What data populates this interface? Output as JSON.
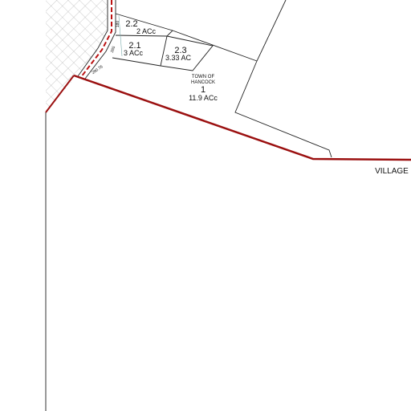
{
  "parcels": [
    {
      "id": "2.2",
      "area": "2 ACc"
    },
    {
      "id": "2.1",
      "area": "3 ACc"
    },
    {
      "id": "2.3",
      "area": "3.33 AC"
    },
    {
      "owner": [
        "TOWN OF",
        "HANCOCK"
      ],
      "id": "1",
      "area": "11.9 ACc"
    }
  ],
  "dimensions": [
    "180",
    "265",
    "280.76"
  ],
  "boundary_label": "VILLAGE"
}
